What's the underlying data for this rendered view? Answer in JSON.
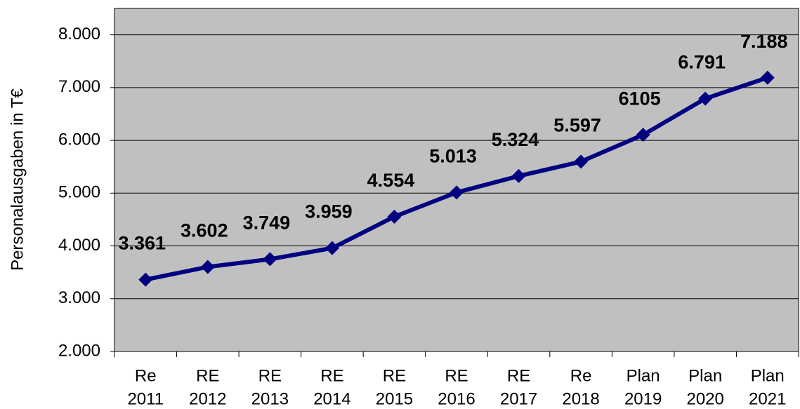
{
  "chart_data": {
    "type": "line",
    "ylabel": "Personalausgaben in T€",
    "categories": [
      [
        "Re",
        "2011"
      ],
      [
        "RE",
        "2012"
      ],
      [
        "RE",
        "2013"
      ],
      [
        "RE",
        "2014"
      ],
      [
        "RE",
        "2015"
      ],
      [
        "RE",
        "2016"
      ],
      [
        "RE",
        "2017"
      ],
      [
        "Re",
        "2018"
      ],
      [
        "Plan",
        "2019"
      ],
      [
        "Plan",
        "2020"
      ],
      [
        "Plan",
        "2021"
      ]
    ],
    "series": [
      {
        "color": "#000080",
        "values": [
          3361,
          3602,
          3749,
          3959,
          4554,
          5013,
          5324,
          5597,
          6105,
          6791,
          7188
        ],
        "value_labels": [
          "3.361",
          "3.602",
          "3.749",
          "3.959",
          "4.554",
          "5.013",
          "5.324",
          "5.597",
          "6105",
          "6.791",
          "7.188"
        ]
      }
    ],
    "ylim": [
      2000,
      8500
    ],
    "yticks": [
      {
        "value": 2000,
        "label": "2.000"
      },
      {
        "value": 3000,
        "label": "3.000"
      },
      {
        "value": 4000,
        "label": "4.000"
      },
      {
        "value": 5000,
        "label": "5.000"
      },
      {
        "value": 6000,
        "label": "6.000"
      },
      {
        "value": 7000,
        "label": "7.000"
      },
      {
        "value": 8000,
        "label": "8.000"
      }
    ],
    "grid": true,
    "background": "#c0c0c0"
  }
}
